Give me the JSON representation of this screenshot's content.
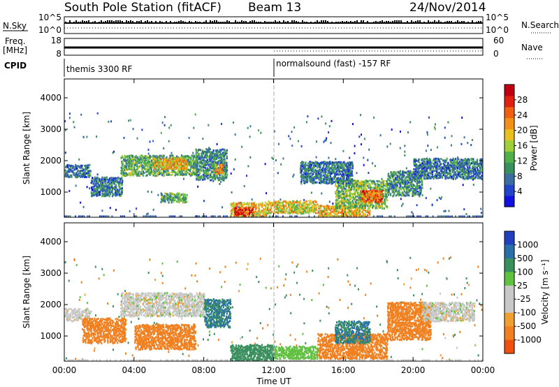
{
  "header": {
    "station": "South Pole Station (fitACF)",
    "beam": "Beam 13",
    "date": "24/Nov/2014"
  },
  "top_panels": {
    "nsky": {
      "label": "N.Sky",
      "tick_hi": "10^5",
      "tick_lo": "10^0"
    },
    "nsearch": {
      "label": "N.Search",
      "tick_hi": "10^5",
      "tick_lo": "10^0"
    },
    "freq": {
      "label_1": "Freq.",
      "label_2": "[MHz]",
      "tick_hi": "18",
      "tick_lo": "8"
    },
    "nave": {
      "label": "Nave",
      "tick_hi": "60",
      "tick_lo": "0"
    },
    "cpid": {
      "label": "CPID",
      "segments": [
        {
          "start_hour": 0,
          "text": "themis 3300 RF"
        },
        {
          "start_hour": 12,
          "text": "normalsound (fast) -157 RF"
        }
      ]
    }
  },
  "colors": {
    "power_scale": [
      "#1010e0",
      "#2244cc",
      "#3a6ea0",
      "#3a8f5e",
      "#52b04a",
      "#9fcf3a",
      "#e8c020",
      "#f39018",
      "#f06010",
      "#e02010",
      "#c00010"
    ],
    "velocity_scale": [
      "#e01010",
      "#f05010",
      "#f08020",
      "#f0a030",
      "#c8c8c8",
      "#c8c8c8",
      "#60c040",
      "#3a8f5e",
      "#2a70a8",
      "#2040c0"
    ]
  },
  "chart_data": [
    {
      "type": "heatmap",
      "name": "power",
      "ylabel": "Slant Range [km]",
      "xlabel": "",
      "colorbar_label": "Power [dB]",
      "colorbar_ticks": [
        "28",
        "24",
        "20",
        "16",
        "12",
        "8",
        "4"
      ],
      "colorbar_range": [
        0,
        32
      ],
      "xlim": [
        0,
        24
      ],
      "ylim": [
        200,
        4600
      ],
      "yticks": [
        "1000",
        "2000",
        "3000",
        "4000"
      ],
      "xticks": [
        "00:00",
        "04:00",
        "08:00",
        "12:00",
        "16:00",
        "20:00",
        "00:00"
      ],
      "regions": [
        {
          "t0": 3.2,
          "t1": 7.6,
          "r0": 1550,
          "r1": 2200,
          "v": 12
        },
        {
          "t0": 5.0,
          "t1": 7.0,
          "r0": 1750,
          "r1": 2100,
          "v": 20
        },
        {
          "t0": 7.5,
          "t1": 9.3,
          "r0": 1400,
          "r1": 2400,
          "v": 10
        },
        {
          "t0": 8.6,
          "t1": 9.1,
          "r0": 1600,
          "r1": 1900,
          "v": 20
        },
        {
          "t0": 0.0,
          "t1": 1.5,
          "r0": 1500,
          "r1": 1900,
          "v": 8
        },
        {
          "t0": 1.5,
          "t1": 3.3,
          "r0": 900,
          "r1": 1500,
          "v": 8
        },
        {
          "t0": 5.5,
          "t1": 7.0,
          "r0": 700,
          "r1": 1000,
          "v": 12
        },
        {
          "t0": 9.5,
          "t1": 11.6,
          "r0": 250,
          "r1": 700,
          "v": 20
        },
        {
          "t0": 9.7,
          "t1": 10.8,
          "r0": 280,
          "r1": 550,
          "v": 28
        },
        {
          "t0": 11.6,
          "t1": 14.5,
          "r0": 350,
          "r1": 750,
          "v": 18
        },
        {
          "t0": 14.5,
          "t1": 17.5,
          "r0": 250,
          "r1": 600,
          "v": 20
        },
        {
          "t0": 15.5,
          "t1": 18.5,
          "r0": 500,
          "r1": 1400,
          "v": 14
        },
        {
          "t0": 17.0,
          "t1": 18.2,
          "r0": 700,
          "r1": 1100,
          "v": 24
        },
        {
          "t0": 18.5,
          "t1": 20.5,
          "r0": 900,
          "r1": 1700,
          "v": 10
        },
        {
          "t0": 20.0,
          "t1": 24.0,
          "r0": 1450,
          "r1": 2100,
          "v": 8
        },
        {
          "t0": 13.5,
          "t1": 16.5,
          "r0": 1300,
          "r1": 2000,
          "v": 8
        }
      ]
    },
    {
      "type": "heatmap",
      "name": "velocity",
      "ylabel": "Slant Range [km]",
      "xlabel": "Time UT",
      "colorbar_label": "Velocity [m s⁻¹]",
      "colorbar_ticks": [
        "1000",
        "500",
        "100",
        "25",
        "-25",
        "-100",
        "-500",
        "-1000"
      ],
      "xlim": [
        0,
        24
      ],
      "ylim": [
        200,
        4600
      ],
      "yticks": [
        "1000",
        "2000",
        "3000",
        "4000"
      ],
      "xticks": [
        "00:00",
        "04:00",
        "08:00",
        "12:00",
        "16:00",
        "20:00",
        "00:00"
      ],
      "regions": [
        {
          "t0": 3.2,
          "t1": 8.0,
          "r0": 1650,
          "r1": 2400,
          "v": 0
        },
        {
          "t0": 8.0,
          "t1": 9.5,
          "r0": 1300,
          "r1": 2200,
          "v": 500
        },
        {
          "t0": 0.0,
          "t1": 1.5,
          "r0": 1500,
          "r1": 1900,
          "v": 0
        },
        {
          "t0": 1.0,
          "t1": 3.5,
          "r0": 800,
          "r1": 1600,
          "v": -300
        },
        {
          "t0": 4.0,
          "t1": 7.5,
          "r0": 600,
          "r1": 1400,
          "v": -300
        },
        {
          "t0": 9.5,
          "t1": 12.0,
          "r0": 250,
          "r1": 750,
          "v": 200
        },
        {
          "t0": 12.0,
          "t1": 14.5,
          "r0": 300,
          "r1": 700,
          "v": 60
        },
        {
          "t0": 14.5,
          "t1": 18.5,
          "r0": 300,
          "r1": 1100,
          "v": -300
        },
        {
          "t0": 15.5,
          "t1": 17.5,
          "r0": 800,
          "r1": 1500,
          "v": 500
        },
        {
          "t0": 18.5,
          "t1": 21.0,
          "r0": 900,
          "r1": 2100,
          "v": -300
        },
        {
          "t0": 20.5,
          "t1": 23.5,
          "r0": 1500,
          "r1": 2100,
          "v": 0
        }
      ]
    }
  ]
}
